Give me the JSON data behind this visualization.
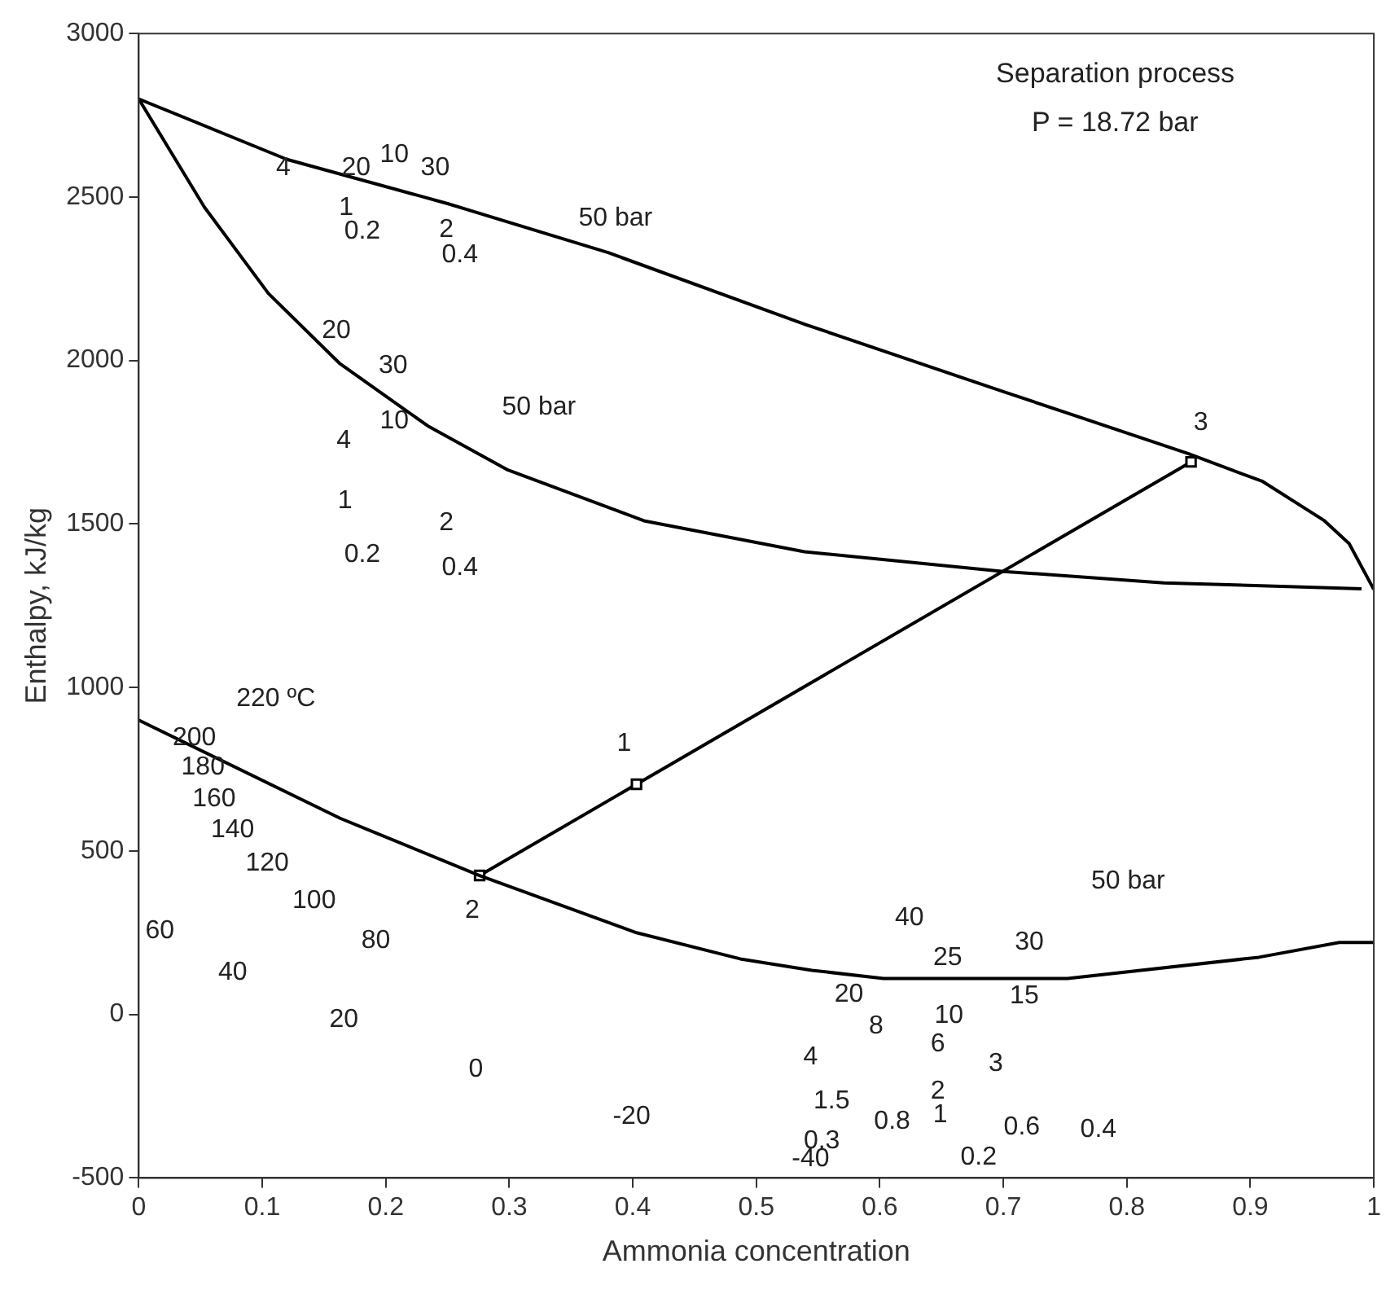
{
  "chart_data": {
    "type": "line",
    "xlabel": "Ammonia concentration",
    "ylabel": "Enthalpy, kJ/kg",
    "xlim": [
      0,
      1
    ],
    "xticks": [
      0,
      0.1,
      0.2,
      0.3,
      0.4,
      0.5,
      0.6,
      0.7,
      0.8,
      0.9,
      1
    ],
    "ylim": [
      -500,
      3000
    ],
    "yticks": [
      -500,
      0,
      500,
      1000,
      1500,
      2000,
      2500,
      3000
    ],
    "grid": false,
    "legend": false,
    "series": [
      {
        "color": "#000000",
        "marker": "none",
        "x": [
          0,
          0.12,
          0.25,
          0.38,
          0.54,
          0.7,
          0.85,
          0.91,
          0.96,
          0.98,
          1
        ],
        "values": [
          2800,
          2615,
          2480,
          2330,
          2110,
          1905,
          1715,
          1630,
          1510,
          1440,
          1300
        ]
      },
      {
        "color": "#000000",
        "marker": "none",
        "x": [
          0,
          0.053,
          0.105,
          0.163,
          0.234,
          0.299,
          0.409,
          0.539,
          0.7,
          0.83,
          0.99
        ],
        "values": [
          2800,
          2470,
          2205,
          1990,
          1800,
          1665,
          1510,
          1415,
          1355,
          1320,
          1302
        ]
      },
      {
        "color": "#000000",
        "marker": "none",
        "x": [
          0,
          0.163,
          0.276,
          0.403,
          0.487,
          0.545,
          0.603,
          0.752,
          0.907,
          0.972,
          1
        ],
        "values": [
          900,
          600,
          425,
          250,
          170,
          135,
          110,
          110,
          175,
          220,
          220
        ]
      },
      {
        "color": "#000000",
        "marker": "square",
        "x": [
          0.276,
          0.403,
          0.852
        ],
        "values": [
          425,
          704,
          1690
        ]
      }
    ],
    "annotations": [
      "Separation process",
      "P = 18.72 bar",
      "4",
      "20",
      "10",
      "30",
      "1",
      "0.2",
      "2",
      "0.4",
      "50 bar",
      "20",
      "30",
      "50 bar",
      "10",
      "4",
      "1",
      "2",
      "0.2",
      "0.4",
      "3",
      "220 ºC",
      "200",
      "180",
      "160",
      "140",
      "120",
      "100",
      "80",
      "60",
      "40",
      "20",
      "0",
      "-20",
      "-40",
      "0.3",
      "1.5",
      "0.8",
      "1",
      "0.6",
      "0.4",
      "0.2",
      "2",
      "4",
      "8",
      "6",
      "10",
      "3",
      "15",
      "20",
      "25",
      "30",
      "40",
      "50 bar",
      "1",
      "2"
    ]
  }
}
